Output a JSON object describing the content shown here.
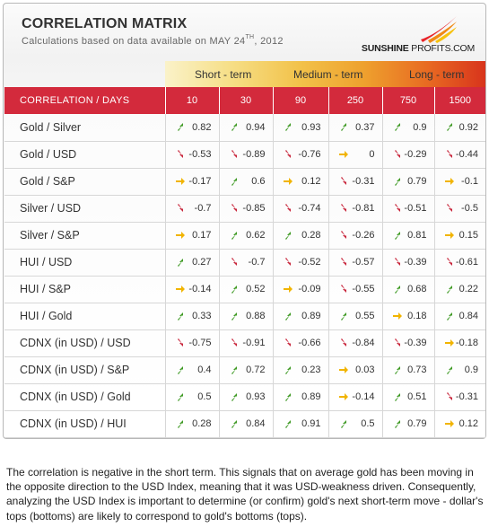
{
  "header": {
    "title": "CORRELATION MATRIX",
    "subtitle_prefix": "Calculations based on data available on  MAY 24",
    "subtitle_sup": "TH",
    "subtitle_suffix": ", 2012"
  },
  "logo": {
    "word_bold": "SUNSHINE",
    "word_rest": " PROFITS.COM"
  },
  "horizons": [
    "Short - term",
    "Medium - term",
    "Long - term"
  ],
  "table": {
    "corner_label": "CORRELATION / DAYS",
    "periods": [
      "10",
      "30",
      "90",
      "250",
      "750",
      "1500"
    ],
    "rows": [
      {
        "label": "Gold / Silver",
        "values": [
          "0.82",
          "0.94",
          "0.93",
          "0.37",
          "0.9",
          "0.92"
        ],
        "arrows": [
          "up",
          "up",
          "up",
          "up",
          "up",
          "up"
        ]
      },
      {
        "label": "Gold / USD",
        "values": [
          "-0.53",
          "-0.89",
          "-0.76",
          "0",
          "-0.29",
          "-0.44"
        ],
        "arrows": [
          "down",
          "down",
          "down",
          "flat",
          "down",
          "down"
        ]
      },
      {
        "label": "Gold / S&P",
        "values": [
          "-0.17",
          "0.6",
          "0.12",
          "-0.31",
          "0.79",
          "-0.1"
        ],
        "arrows": [
          "flat",
          "up",
          "flat",
          "down",
          "up",
          "flat"
        ]
      },
      {
        "label": "Silver / USD",
        "values": [
          "-0.7",
          "-0.85",
          "-0.74",
          "-0.81",
          "-0.51",
          "-0.5"
        ],
        "arrows": [
          "down",
          "down",
          "down",
          "down",
          "down",
          "down"
        ]
      },
      {
        "label": "Silver / S&P",
        "values": [
          "0.17",
          "0.62",
          "0.28",
          "-0.26",
          "0.81",
          "0.15"
        ],
        "arrows": [
          "flat",
          "up",
          "up",
          "down",
          "up",
          "flat"
        ]
      },
      {
        "label": "HUI / USD",
        "values": [
          "0.27",
          "-0.7",
          "-0.52",
          "-0.57",
          "-0.39",
          "-0.61"
        ],
        "arrows": [
          "up",
          "down",
          "down",
          "down",
          "down",
          "down"
        ]
      },
      {
        "label": "HUI / S&P",
        "values": [
          "-0.14",
          "0.52",
          "-0.09",
          "-0.55",
          "0.68",
          "0.22"
        ],
        "arrows": [
          "flat",
          "up",
          "flat",
          "down",
          "up",
          "up"
        ]
      },
      {
        "label": "HUI / Gold",
        "values": [
          "0.33",
          "0.88",
          "0.89",
          "0.55",
          "0.18",
          "0.84"
        ],
        "arrows": [
          "up",
          "up",
          "up",
          "up",
          "flat",
          "up"
        ]
      },
      {
        "label": "CDNX (in USD) / USD",
        "values": [
          "-0.75",
          "-0.91",
          "-0.66",
          "-0.84",
          "-0.39",
          "-0.18"
        ],
        "arrows": [
          "down",
          "down",
          "down",
          "down",
          "down",
          "flat"
        ]
      },
      {
        "label": "CDNX (in USD) / S&P",
        "values": [
          "0.4",
          "0.72",
          "0.23",
          "0.03",
          "0.73",
          "0.9"
        ],
        "arrows": [
          "up",
          "up",
          "up",
          "flat",
          "up",
          "up"
        ]
      },
      {
        "label": "CDNX (in USD) / Gold",
        "values": [
          "0.5",
          "0.93",
          "0.89",
          "-0.14",
          "0.51",
          "-0.31"
        ],
        "arrows": [
          "up",
          "up",
          "up",
          "flat",
          "up",
          "down"
        ]
      },
      {
        "label": "CDNX (in USD) / HUI",
        "values": [
          "0.28",
          "0.84",
          "0.91",
          "0.5",
          "0.79",
          "0.12"
        ],
        "arrows": [
          "up",
          "up",
          "up",
          "up",
          "up",
          "flat"
        ]
      }
    ]
  },
  "arrow_colors": {
    "up": "#3f9a24",
    "down": "#c8243a",
    "flat": "#f1b400"
  },
  "note": "The correlation is negative in the short term. This signals that on average gold has been moving in the opposite direction to the USD Index, meaning that it was USD-weakness driven. Consequently, analyzing the USD Index is important to determine (or confirm) gold's next short-term move - dollar's tops (bottoms) are likely to correspond to gold's bottoms (tops)."
}
